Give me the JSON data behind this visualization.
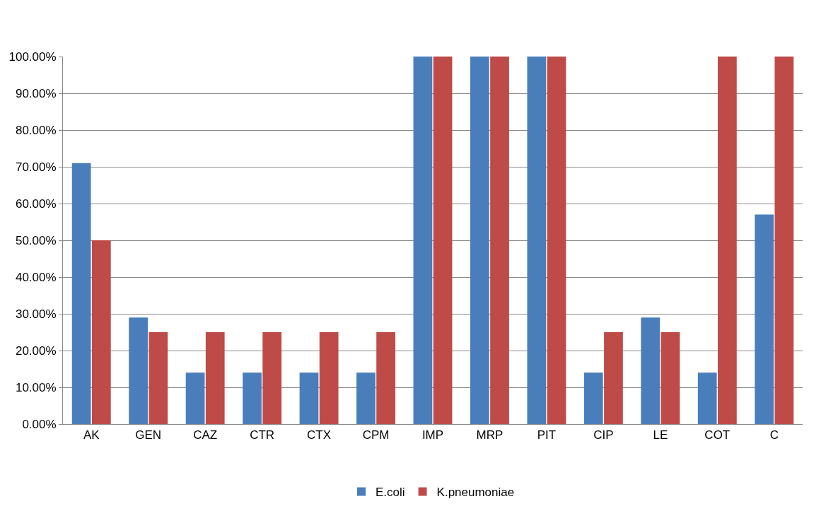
{
  "chart_data": {
    "type": "bar",
    "categories": [
      "AK",
      "GEN",
      "CAZ",
      "CTR",
      "CTX",
      "CPM",
      "IMP",
      "MRP",
      "PIT",
      "CIP",
      "LE",
      "COT",
      "C"
    ],
    "series": [
      {
        "name": "E.coli",
        "color": "#4a7ebb",
        "values": [
          71,
          29,
          14,
          14,
          14,
          14,
          100,
          100,
          100,
          14,
          29,
          14,
          57
        ]
      },
      {
        "name": "K.pneumoniae",
        "color": "#be4b48",
        "values": [
          50,
          25,
          25,
          25,
          25,
          25,
          100,
          100,
          100,
          25,
          25,
          100,
          100
        ]
      }
    ],
    "ylim": [
      0,
      100
    ],
    "yticks": [
      {
        "value": 0,
        "label": "0.00%"
      },
      {
        "value": 10,
        "label": "10.00%"
      },
      {
        "value": 20,
        "label": "20.00%"
      },
      {
        "value": 30,
        "label": "30.00%"
      },
      {
        "value": 40,
        "label": "40.00%"
      },
      {
        "value": 50,
        "label": "50.00%"
      },
      {
        "value": 60,
        "label": "60.00%"
      },
      {
        "value": 70,
        "label": "70.00%"
      },
      {
        "value": 80,
        "label": "80.00%"
      },
      {
        "value": 90,
        "label": "90.00%"
      },
      {
        "value": 100,
        "label": "100.00%"
      }
    ],
    "grid": "y",
    "legend": "bottom"
  }
}
